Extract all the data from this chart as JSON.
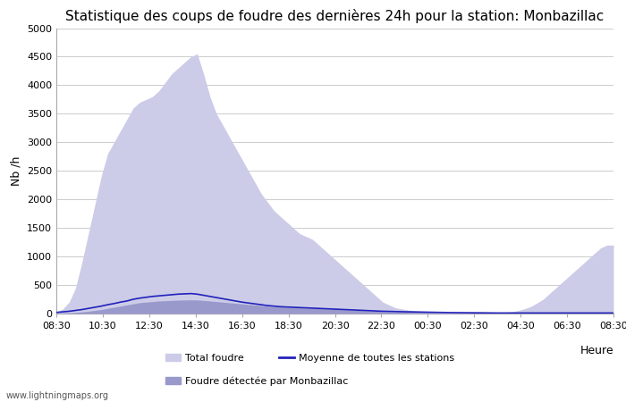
{
  "title": "Statistique des coups de foudre des dernières 24h pour la station: Monbazillac",
  "xlabel": "Heure",
  "ylabel": "Nb /h",
  "watermark": "www.lightningmaps.org",
  "ylim": [
    0,
    5000
  ],
  "yticks": [
    0,
    500,
    1000,
    1500,
    2000,
    2500,
    3000,
    3500,
    4000,
    4500,
    5000
  ],
  "xtick_labels": [
    "08:30",
    "10:30",
    "12:30",
    "14:30",
    "16:30",
    "18:30",
    "20:30",
    "22:30",
    "00:30",
    "02:30",
    "04:30",
    "06:30",
    "08:30"
  ],
  "legend_row1": [
    {
      "label": "Total foudre",
      "color": "#ccccff",
      "type": "fill"
    },
    {
      "label": "Moyenne de toutes les stations",
      "color": "#2222bb",
      "type": "line"
    }
  ],
  "legend_row2": [
    {
      "label": "Foudre détectée par Monbazillac",
      "color": "#9999cc",
      "type": "fill"
    }
  ],
  "bg_color": "#ffffff",
  "fill_total_color": "#cccce8",
  "fill_monbazillac_color": "#9999cc",
  "line_moyenne_color": "#2222bb",
  "grid_color": "#cccccc",
  "title_fontsize": 11,
  "total_foudre": [
    30,
    80,
    200,
    450,
    900,
    1400,
    1900,
    2400,
    2800,
    3000,
    3200,
    3400,
    3600,
    3700,
    3750,
    3800,
    3900,
    4050,
    4200,
    4300,
    4400,
    4500,
    4550,
    4200,
    3800,
    3500,
    3300,
    3100,
    2900,
    2700,
    2500,
    2300,
    2100,
    1950,
    1800,
    1700,
    1600,
    1500,
    1400,
    1350,
    1300,
    1200,
    1100,
    1000,
    900,
    800,
    700,
    600,
    500,
    400,
    300,
    200,
    150,
    100,
    80,
    60,
    50,
    40,
    30,
    20,
    10,
    5,
    5,
    5,
    5,
    5,
    5,
    5,
    5,
    10,
    20,
    30,
    50,
    80,
    120,
    180,
    250,
    350,
    450,
    550,
    650,
    750,
    850,
    950,
    1050,
    1150,
    1200,
    1200
  ],
  "moyenne": [
    20,
    30,
    40,
    55,
    70,
    90,
    110,
    130,
    155,
    175,
    200,
    220,
    250,
    270,
    285,
    300,
    310,
    320,
    330,
    340,
    345,
    350,
    340,
    320,
    300,
    280,
    260,
    240,
    220,
    200,
    185,
    170,
    155,
    140,
    130,
    120,
    115,
    110,
    105,
    100,
    95,
    90,
    85,
    80,
    75,
    70,
    65,
    60,
    55,
    50,
    45,
    40,
    38,
    35,
    32,
    30,
    28,
    26,
    24,
    22,
    20,
    18,
    17,
    16,
    15,
    14,
    13,
    12,
    11,
    10,
    10,
    10,
    10,
    10,
    10,
    10,
    10,
    10,
    10,
    10,
    10,
    10,
    10,
    10,
    10,
    10,
    10,
    10
  ],
  "monbazillac": [
    5,
    10,
    15,
    20,
    30,
    40,
    55,
    70,
    90,
    110,
    130,
    150,
    170,
    190,
    200,
    210,
    220,
    225,
    230,
    235,
    238,
    240,
    238,
    230,
    220,
    210,
    200,
    190,
    180,
    170,
    160,
    150,
    140,
    130,
    120,
    115,
    110,
    105,
    100,
    95,
    90,
    85,
    80,
    75,
    70,
    65,
    60,
    55,
    50,
    45,
    40,
    35,
    30,
    28,
    25,
    22,
    20,
    18,
    16,
    14,
    12,
    10,
    9,
    8,
    7,
    6,
    5,
    5,
    5,
    5,
    5,
    5,
    5,
    5,
    5,
    5,
    5,
    5,
    5,
    5,
    5,
    5,
    5,
    5,
    5,
    5,
    5,
    5
  ]
}
